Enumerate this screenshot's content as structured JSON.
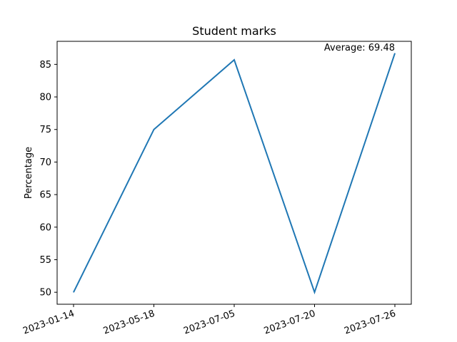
{
  "chart_data": {
    "type": "line",
    "title": "Student marks",
    "xlabel": "",
    "ylabel": "Percentage",
    "categories": [
      "2023-01-14",
      "2023-05-18",
      "2023-07-05",
      "2023-07-20",
      "2023-07-26"
    ],
    "series": [
      {
        "values": [
          50,
          75,
          85.7,
          50,
          86.7
        ],
        "color": "#1f77b4"
      }
    ],
    "yticks": [
      50,
      55,
      60,
      65,
      70,
      75,
      80,
      85
    ],
    "ylim": [
      48.16,
      88.54
    ],
    "annotation": "Average: 69.48",
    "grid": false,
    "x_tick_rotation": "tilted"
  }
}
